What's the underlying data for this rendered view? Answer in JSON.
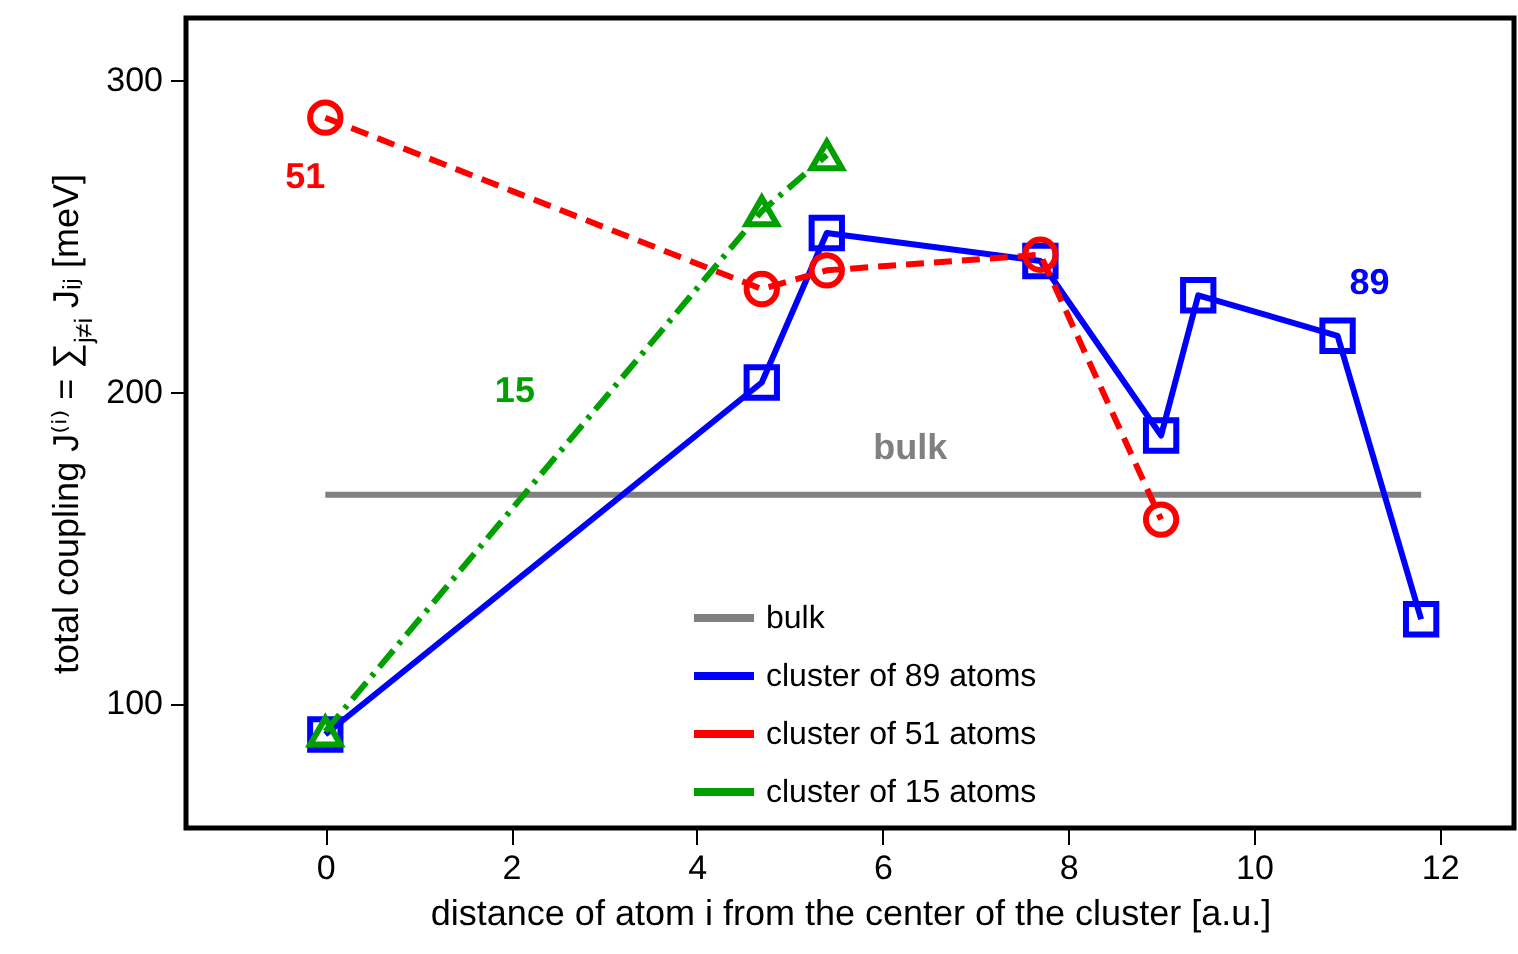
{
  "chart_data": {
    "type": "line",
    "xlabel": "distance of atom i from the center of the cluster   [a.u.]",
    "ylabel": "total coupling  J⁽ⁱ⁾ = ∑$_{j≠i}$ Jᵢⱼ   [meV]",
    "xlim": [
      -1.5,
      12.8
    ],
    "ylim": [
      60,
      320
    ],
    "xticks": [
      0,
      2,
      4,
      6,
      8,
      10,
      12
    ],
    "yticks": [
      100,
      200,
      300
    ],
    "legend": "bottom",
    "series": [
      {
        "name": "bulk",
        "color": "#808080",
        "marker": "none",
        "line_style": "solid",
        "x": [
          0,
          11.8
        ],
        "values": [
          167,
          167
        ]
      },
      {
        "name": "cluster of 89 atoms",
        "color": "#0000ff",
        "marker": "square",
        "line_style": "solid",
        "x": [
          0,
          4.7,
          5.4,
          7.7,
          9.0,
          9.4,
          10.9,
          11.8
        ],
        "values": [
          90,
          203,
          251,
          242,
          186,
          231,
          218,
          127
        ]
      },
      {
        "name": "cluster of 51 atoms",
        "color": "#ff0000",
        "marker": "circle",
        "line_style": "dashed",
        "x": [
          0,
          4.7,
          5.4,
          7.7,
          9.0
        ],
        "values": [
          288,
          233,
          239,
          244,
          159
        ]
      },
      {
        "name": "cluster of 15 atoms",
        "color": "#00a000",
        "marker": "triangle",
        "line_style": "dashdot",
        "x": [
          0,
          4.7,
          5.4
        ],
        "values": [
          91,
          258,
          276
        ]
      }
    ],
    "annotations": [
      {
        "text": "51",
        "x": 0,
        "y": 288
      },
      {
        "text": "15",
        "x": 2.3,
        "y": 173
      },
      {
        "text": "89",
        "x": 10.9,
        "y": 218
      },
      {
        "text": "bulk",
        "x": 6.3,
        "y": 167
      }
    ]
  }
}
